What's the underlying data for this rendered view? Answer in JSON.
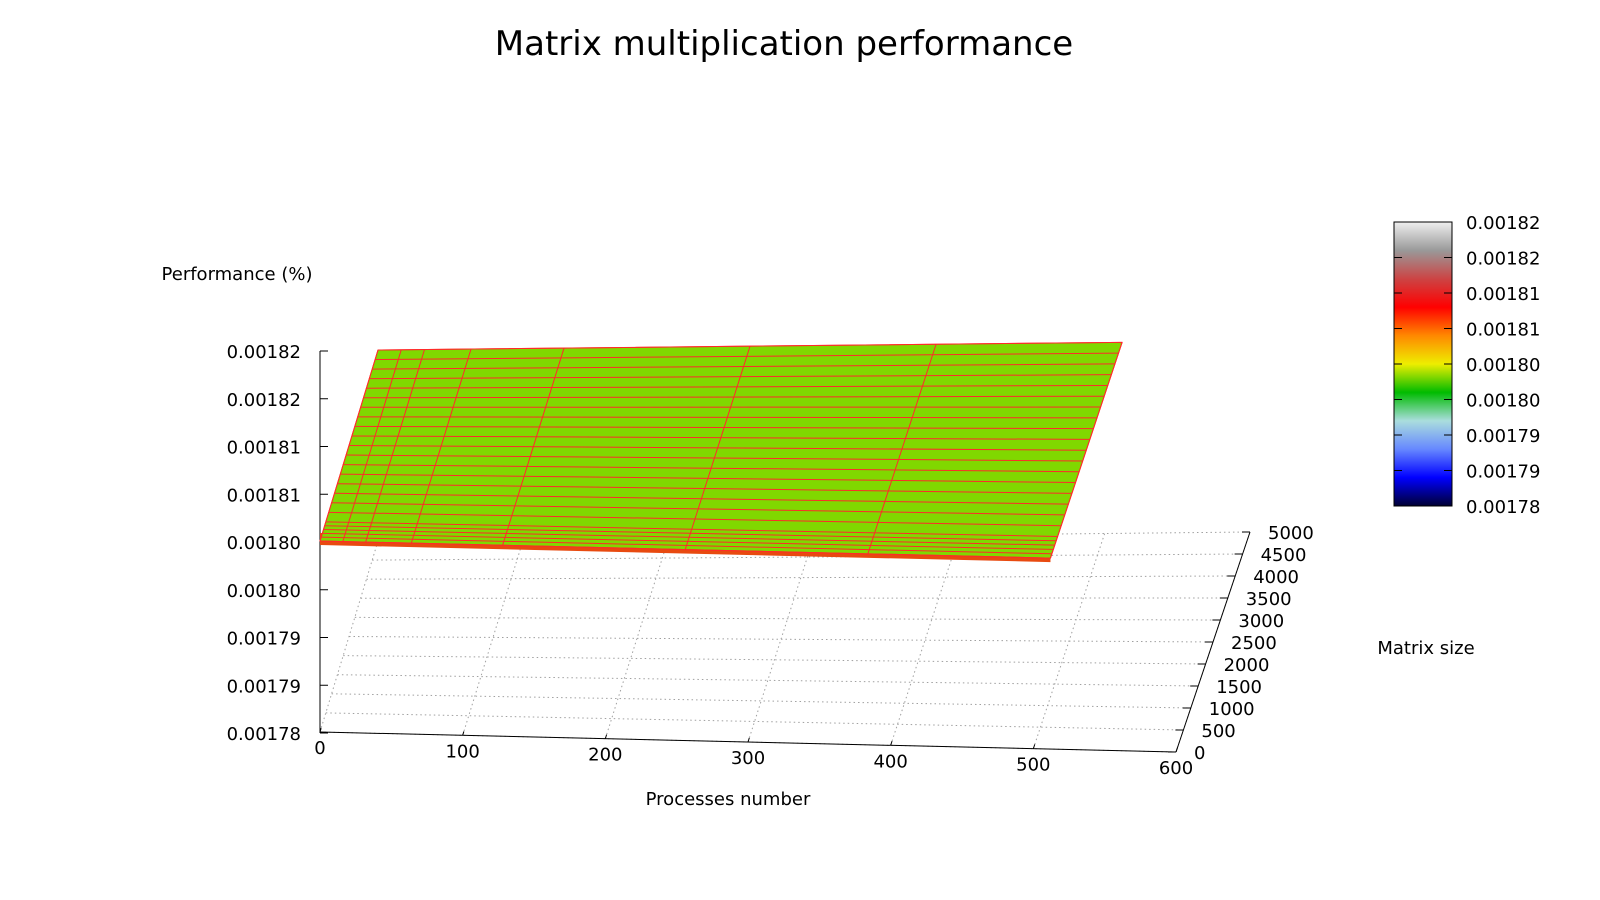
{
  "chart_data": {
    "type": "surface3d",
    "title": "Matrix multiplication performance",
    "xlabel": "Processes number",
    "ylabel": "Matrix size",
    "zlabel": "Performance (%)",
    "xlim": [
      0,
      600
    ],
    "ylim": [
      0,
      5000
    ],
    "zlim": [
      0.00178,
      0.00182
    ],
    "x_ticks": [
      "0",
      "100",
      "200",
      "300",
      "400",
      "500",
      "600"
    ],
    "y_ticks": [
      "0",
      "500",
      "1000",
      "1500",
      "2000",
      "2500",
      "3000",
      "3500",
      "4000",
      "4500",
      "5000"
    ],
    "z_ticks": [
      "0.00178",
      "0.00179",
      "0.00179",
      "0.00180",
      "0.00180",
      "0.00181",
      "0.00181",
      "0.00182",
      "0.00182"
    ],
    "colorbar_ticks": [
      "0.00178",
      "0.00179",
      "0.00179",
      "0.00180",
      "0.00180",
      "0.00181",
      "0.00181",
      "0.00182",
      "0.00182"
    ],
    "colorbar_colors": [
      "#000033",
      "#0000ff",
      "#6688ff",
      "#aadddd",
      "#00bb00",
      "#eeee00",
      "#ff8800",
      "#ff0000",
      "#cc4444",
      "#999999",
      "#eeeeee"
    ],
    "surface_color": "#80d800",
    "mesh_color": "#ff2a2a",
    "surface_x": [
      0,
      16,
      32,
      64,
      128,
      256,
      384,
      512
    ],
    "surface_y": [
      0,
      100,
      200,
      300,
      400,
      500,
      750,
      1000,
      1250,
      1500,
      1750,
      2000,
      2250,
      2500,
      2750,
      3000,
      3250,
      3500,
      3750,
      4000,
      4250,
      4500,
      4750,
      5000
    ],
    "surface_value": 0.0018
  }
}
